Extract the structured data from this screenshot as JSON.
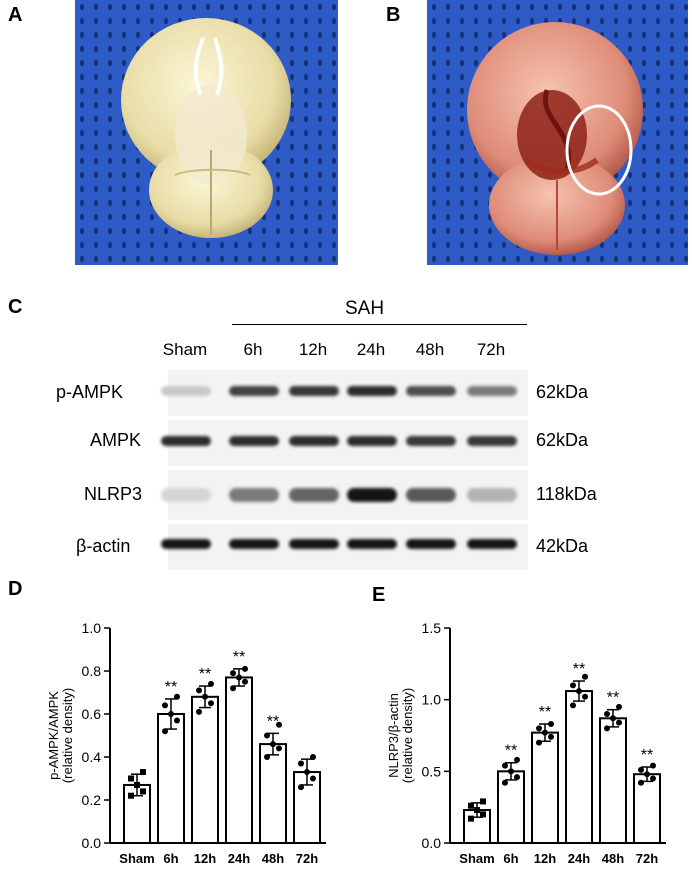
{
  "panels": {
    "a": "A",
    "b": "B",
    "c": "C",
    "d": "D",
    "e": "E"
  },
  "blot": {
    "group_label": "SAH",
    "lanes": [
      "Sham",
      "6h",
      "12h",
      "24h",
      "48h",
      "72h"
    ],
    "rows": [
      {
        "name": "p-AMPK",
        "kda": "62kDa",
        "intensity": [
          0.15,
          0.75,
          0.8,
          0.85,
          0.7,
          0.5
        ]
      },
      {
        "name": "AMPK",
        "kda": "62kDa",
        "intensity": [
          0.85,
          0.85,
          0.85,
          0.85,
          0.8,
          0.8
        ]
      },
      {
        "name": "NLRP3",
        "kda": "118kDa",
        "intensity": [
          0.1,
          0.5,
          0.6,
          0.95,
          0.65,
          0.25
        ]
      },
      {
        "name": "β-actin",
        "kda": "42kDa",
        "intensity": [
          0.95,
          0.95,
          0.95,
          0.95,
          0.95,
          0.95
        ]
      }
    ]
  },
  "chart_data": [
    {
      "type": "bar",
      "panel": "D",
      "categories": [
        "Sham",
        "6h",
        "12h",
        "24h",
        "48h",
        "72h"
      ],
      "values": [
        0.27,
        0.6,
        0.68,
        0.77,
        0.46,
        0.33
      ],
      "errors": [
        0.05,
        0.07,
        0.05,
        0.04,
        0.05,
        0.06
      ],
      "points": [
        [
          0.22,
          0.24,
          0.27,
          0.3,
          0.33
        ],
        [
          0.52,
          0.57,
          0.6,
          0.64,
          0.68
        ],
        [
          0.61,
          0.65,
          0.68,
          0.71,
          0.74
        ],
        [
          0.72,
          0.75,
          0.77,
          0.79,
          0.81
        ],
        [
          0.4,
          0.44,
          0.46,
          0.5,
          0.55
        ],
        [
          0.26,
          0.3,
          0.33,
          0.37,
          0.4
        ]
      ],
      "significance": [
        "",
        "**",
        "**",
        "**",
        "**",
        ""
      ],
      "ylabel_line1": "p-AMPK/AMPK",
      "ylabel_line2": "(relative density)",
      "ylim": [
        0.0,
        1.0
      ],
      "yticks": [
        "0.0",
        "0.2",
        "0.4",
        "0.6",
        "0.8",
        "1.0"
      ],
      "ytick_values": [
        0.0,
        0.2,
        0.4,
        0.6,
        0.8,
        1.0
      ]
    },
    {
      "type": "bar",
      "panel": "E",
      "categories": [
        "Sham",
        "6h",
        "12h",
        "24h",
        "48h",
        "72h"
      ],
      "values": [
        0.23,
        0.5,
        0.77,
        1.06,
        0.87,
        0.48
      ],
      "errors": [
        0.05,
        0.06,
        0.06,
        0.07,
        0.06,
        0.05
      ],
      "points": [
        [
          0.17,
          0.2,
          0.23,
          0.26,
          0.29
        ],
        [
          0.42,
          0.46,
          0.5,
          0.54,
          0.58
        ],
        [
          0.7,
          0.74,
          0.77,
          0.8,
          0.83
        ],
        [
          0.96,
          1.02,
          1.06,
          1.1,
          1.16
        ],
        [
          0.8,
          0.84,
          0.87,
          0.9,
          0.95
        ],
        [
          0.42,
          0.45,
          0.48,
          0.51,
          0.54
        ]
      ],
      "significance": [
        "",
        "**",
        "**",
        "**",
        "**",
        "**"
      ],
      "ylabel_line1": "NLRP3/β-actin",
      "ylabel_line2": "(relative density)",
      "ylim": [
        0.0,
        1.5
      ],
      "yticks": [
        "0.0",
        "0.5",
        "1.0",
        "1.5"
      ],
      "ytick_values": [
        0.0,
        0.5,
        1.0,
        1.5
      ]
    }
  ]
}
